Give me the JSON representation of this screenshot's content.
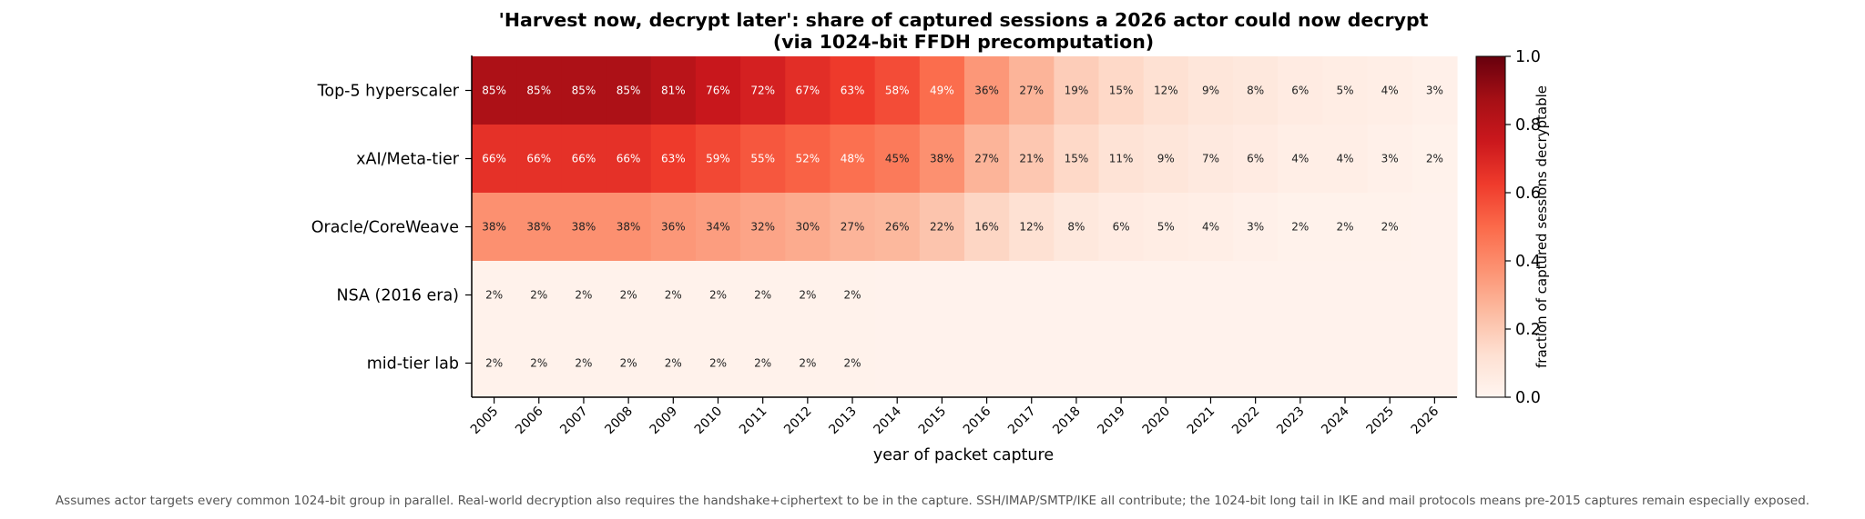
{
  "chart_data": {
    "type": "heatmap",
    "title_line1": "'Harvest now, decrypt later': share of captured sessions a 2026 actor could now decrypt",
    "title_line2": "(via 1024-bit FFDH precomputation)",
    "xlabel": "year of packet capture",
    "colorbar_label": "fraction of captured sessions decryptable",
    "colorbar_ticks": [
      "0.0",
      "0.2",
      "0.4",
      "0.6",
      "0.8",
      "1.0"
    ],
    "colorbar_range": [
      0,
      1
    ],
    "colormap": "Reds",
    "years": [
      "2005",
      "2006",
      "2007",
      "2008",
      "2009",
      "2010",
      "2011",
      "2012",
      "2013",
      "2014",
      "2015",
      "2016",
      "2017",
      "2018",
      "2019",
      "2020",
      "2021",
      "2022",
      "2023",
      "2024",
      "2025",
      "2026"
    ],
    "actors": [
      "Top-5 hyperscaler",
      "xAI/Meta-tier",
      "Oracle/CoreWeave",
      "NSA (2016 era)",
      "mid-tier lab"
    ],
    "values": [
      [
        0.85,
        0.85,
        0.85,
        0.85,
        0.81,
        0.76,
        0.72,
        0.67,
        0.63,
        0.58,
        0.49,
        0.36,
        0.27,
        0.19,
        0.15,
        0.12,
        0.09,
        0.08,
        0.06,
        0.05,
        0.04,
        0.03
      ],
      [
        0.66,
        0.66,
        0.66,
        0.66,
        0.63,
        0.59,
        0.55,
        0.52,
        0.48,
        0.45,
        0.38,
        0.27,
        0.21,
        0.15,
        0.11,
        0.09,
        0.07,
        0.06,
        0.04,
        0.04,
        0.03,
        0.02
      ],
      [
        0.38,
        0.38,
        0.38,
        0.38,
        0.36,
        0.34,
        0.32,
        0.3,
        0.27,
        0.26,
        0.22,
        0.16,
        0.12,
        0.08,
        0.06,
        0.05,
        0.04,
        0.03,
        0.02,
        0.02,
        0.02,
        0.015
      ],
      [
        0.02,
        0.02,
        0.02,
        0.02,
        0.02,
        0.02,
        0.02,
        0.02,
        0.02,
        0.015,
        0.015,
        0.015,
        0.015,
        0.015,
        0.015,
        0.015,
        0.015,
        0.015,
        0.015,
        0.015,
        0.015,
        0.015
      ],
      [
        0.02,
        0.02,
        0.02,
        0.02,
        0.02,
        0.02,
        0.02,
        0.02,
        0.02,
        0.015,
        0.015,
        0.015,
        0.015,
        0.015,
        0.015,
        0.015,
        0.015,
        0.015,
        0.015,
        0.015,
        0.015,
        0.015
      ]
    ],
    "cell_labels": [
      [
        "85%",
        "85%",
        "85%",
        "85%",
        "81%",
        "76%",
        "72%",
        "67%",
        "63%",
        "58%",
        "49%",
        "36%",
        "27%",
        "19%",
        "15%",
        "12%",
        "9%",
        "8%",
        "6%",
        "5%",
        "4%",
        "3%"
      ],
      [
        "66%",
        "66%",
        "66%",
        "66%",
        "63%",
        "59%",
        "55%",
        "52%",
        "48%",
        "45%",
        "38%",
        "27%",
        "21%",
        "15%",
        "11%",
        "9%",
        "7%",
        "6%",
        "4%",
        "4%",
        "3%",
        "2%"
      ],
      [
        "38%",
        "38%",
        "38%",
        "38%",
        "36%",
        "34%",
        "32%",
        "30%",
        "27%",
        "26%",
        "22%",
        "16%",
        "12%",
        "8%",
        "6%",
        "5%",
        "4%",
        "3%",
        "2%",
        "2%",
        "2%",
        ""
      ],
      [
        "2%",
        "2%",
        "2%",
        "2%",
        "2%",
        "2%",
        "2%",
        "2%",
        "2%",
        "",
        "",
        "",
        "",
        "",
        "",
        "",
        "",
        "",
        "",
        "",
        "",
        ""
      ],
      [
        "2%",
        "2%",
        "2%",
        "2%",
        "2%",
        "2%",
        "2%",
        "2%",
        "2%",
        "",
        "",
        "",
        "",
        "",
        "",
        "",
        "",
        "",
        "",
        "",
        "",
        ""
      ]
    ]
  },
  "footnote": "Assumes actor targets every common 1024-bit group in parallel. Real-world decryption also requires the handshake+ciphertext to be in the capture. SSH/IMAP/SMTP/IKE all contribute; the 1024-bit long tail in IKE and mail protocols means pre-2015 captures remain especially exposed."
}
